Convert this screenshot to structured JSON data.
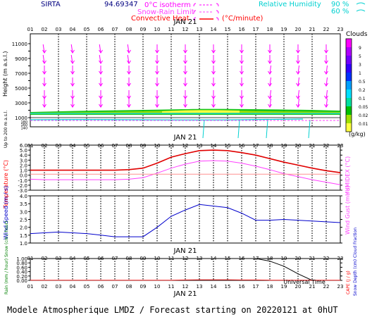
{
  "header": {
    "station": "SIRTA",
    "coords": "94.69347",
    "legend_isotherm": "0°C isotherm",
    "legend_snowrain": "Snow-Rain Limit",
    "legend_convective": "Convective Heat",
    "legend_unit": "(°C/minute)",
    "legend_rh": "Relative Humidity",
    "rh_90": "90 %",
    "rh_60": "60 %"
  },
  "date_label": "JAN 21",
  "hours": [
    "01",
    "02",
    "03",
    "04",
    "05",
    "06",
    "07",
    "08",
    "09",
    "10",
    "11",
    "12",
    "13",
    "14",
    "15",
    "16",
    "17",
    "18",
    "19",
    "20",
    "21",
    "22",
    "23"
  ],
  "panel1": {
    "ylabel": "Height (m a.s.l.)",
    "ylabel_low": "Up to 200 m a.s.l.",
    "yticks_upper": [
      "11000",
      "9000",
      "7000",
      "5000",
      "3000",
      "1000"
    ],
    "yticks_upper_all": [
      "11000",
      "10000",
      "9000",
      "8000",
      "7000",
      "6000",
      "5000",
      "4000",
      "3000",
      "2000",
      "1000"
    ],
    "yticks_lower": [
      "180",
      "160",
      "140",
      "120",
      "100",
      "80",
      "60",
      "40",
      "20"
    ],
    "colorbar_title": "Clouds",
    "colorbar_ticks": [
      "9",
      "5",
      "3",
      "1",
      "0.5",
      "0.2",
      "0.1",
      "0.05",
      "0.02",
      "0.01"
    ],
    "colorbar_unit": "(g/kg)",
    "colorbar_colors": [
      "#ff00ff",
      "#b000ff",
      "#7000ff",
      "#3000ff",
      "#0030ff",
      "#00a0ff",
      "#00e0ff",
      "#00e0a0",
      "#00c000",
      "#a0e000",
      "#ffff40"
    ]
  },
  "panel2": {
    "ylabel": "Temperature (°C)",
    "ylabel_right": "HUMIDEX (°C)",
    "yticks": [
      "6.0",
      "5.0",
      "4.0",
      "3.0",
      "2.0",
      "1.0",
      "0.0",
      "-1.0",
      "-2.0",
      "-3.0"
    ]
  },
  "panel3": {
    "ylabel": "Wind Speed (m / s)",
    "ylabel_right": "Wind Gust (m / s)",
    "yticks": [
      "4.0",
      "3.5",
      "3.0",
      "2.5",
      "2.0",
      "1.5",
      "1.0"
    ]
  },
  "panel4": {
    "ylabel": "Rain (mm / hour) Snow (cm / hour)",
    "ylabel_right_a": "CAPE (J / g)",
    "ylabel_right_b": "Snow Depth (cm) Cloud Fraction",
    "yticks": [
      "1.00",
      "0.80",
      "0.60",
      "0.40",
      "0.20",
      "0.00"
    ],
    "universal_time": "Universal Time"
  },
  "footer": "Modele Atmospherique LMDZ / Forecast starting on 20220121 at 0hUT",
  "chart_data": [
    {
      "type": "line",
      "title": "Temperature / Humidex",
      "x": [
        "01",
        "02",
        "03",
        "04",
        "05",
        "06",
        "07",
        "08",
        "09",
        "10",
        "11",
        "12",
        "13",
        "14",
        "15",
        "16",
        "17",
        "18",
        "19",
        "20",
        "21",
        "22",
        "23"
      ],
      "ylim": [
        -3.0,
        6.0
      ],
      "series": [
        {
          "values": [
            1.0,
            1.0,
            1.0,
            1.0,
            1.0,
            1.0,
            1.0,
            1.1,
            1.4,
            2.4,
            3.6,
            4.3,
            4.9,
            5.0,
            4.9,
            4.5,
            4.0,
            3.3,
            2.6,
            2.0,
            1.4,
            0.9,
            0.5
          ],
          "color": "#e00000"
        },
        {
          "values": [
            -0.8,
            -0.9,
            -0.9,
            -0.9,
            -0.9,
            -0.9,
            -0.9,
            -0.8,
            -0.5,
            0.4,
            1.4,
            2.2,
            2.8,
            2.9,
            2.8,
            2.4,
            1.8,
            1.1,
            0.3,
            -0.3,
            -0.9,
            -1.4,
            -1.9
          ],
          "color": "#ff40ff"
        },
        {
          "values": [
            0.2,
            0.2,
            0.2,
            0.2,
            0.2,
            0.2,
            0.2,
            0.2,
            0.2,
            0.2,
            0.2,
            0.2,
            0.2,
            0.2,
            0.2,
            0.2,
            0.2,
            0.2,
            0.2,
            0.2,
            0.2,
            0.2,
            0.2
          ],
          "color": "#ff9090"
        }
      ]
    },
    {
      "type": "line",
      "title": "Wind Speed",
      "x": [
        "01",
        "02",
        "03",
        "04",
        "05",
        "06",
        "07",
        "08",
        "09",
        "10",
        "11",
        "12",
        "13",
        "14",
        "15",
        "16",
        "17",
        "18",
        "19",
        "20",
        "21",
        "22",
        "23"
      ],
      "ylim": [
        1.0,
        4.0
      ],
      "series": [
        {
          "values": [
            1.6,
            1.65,
            1.7,
            1.65,
            1.6,
            1.5,
            1.4,
            1.4,
            1.4,
            2.0,
            2.7,
            3.1,
            3.45,
            3.35,
            3.25,
            2.9,
            2.45,
            2.45,
            2.5,
            2.45,
            2.4,
            2.35,
            2.3
          ],
          "color": "#0000cc"
        }
      ]
    },
    {
      "type": "line",
      "title": "Rain / Cloud Fraction",
      "x": [
        "01",
        "02",
        "03",
        "04",
        "05",
        "06",
        "07",
        "08",
        "09",
        "10",
        "11",
        "12",
        "13",
        "14",
        "15",
        "16",
        "17",
        "18",
        "19",
        "20",
        "21",
        "22",
        "23"
      ],
      "ylim": [
        0.0,
        1.0
      ],
      "series": [
        {
          "values": [
            1.0,
            1.0,
            1.0,
            1.0,
            1.0,
            1.0,
            1.0,
            1.0,
            1.0,
            1.0,
            1.0,
            1.0,
            1.0,
            1.0,
            1.0,
            1.0,
            1.0,
            0.88,
            0.65,
            0.3,
            0.0,
            0.0,
            0.0
          ],
          "color": "#000000"
        },
        {
          "values": [
            0.01,
            0.01,
            0.01,
            0.01,
            0.01,
            0.01,
            0.01,
            0.01,
            0.01,
            0.01,
            0.01,
            0.02,
            0.03,
            0.03,
            0.03,
            0.02,
            0.02,
            0.01,
            0.01,
            0.01,
            0.01,
            0.01,
            0.01
          ],
          "color": "#ff3030"
        }
      ]
    }
  ]
}
